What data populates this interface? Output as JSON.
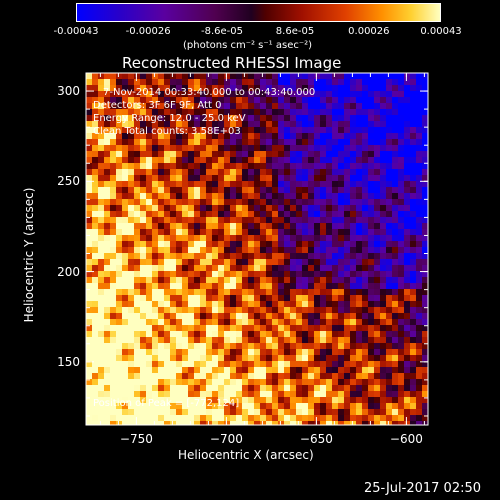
{
  "colorbar": {
    "tick_labels": [
      "-0.00043",
      "-0.00026",
      "-8.6e-05",
      "8.6e-05",
      "0.00026",
      "0.00043"
    ],
    "units_text": "(photons cm⁻² s⁻¹ asec⁻²)",
    "range": [
      -0.00043,
      0.00043
    ]
  },
  "chart_data": {
    "type": "heatmap",
    "title": "Reconstructed RHESSI Image",
    "xlabel": "Heliocentric X (arcsec)",
    "ylabel": "Heliocentric Y (arcsec)",
    "xlim": [
      -778,
      -588
    ],
    "ylim": [
      115,
      310
    ],
    "x_ticks": [
      -750,
      -700,
      -650,
      -600
    ],
    "y_ticks": [
      150,
      200,
      250,
      300
    ],
    "x_tick_labels": [
      "−750",
      "−700",
      "−650",
      "−600"
    ],
    "y_tick_labels": [
      "150",
      "200",
      "250",
      "300"
    ],
    "peak_position": [
      -772,
      124
    ],
    "info_lines": [
      "7-Nov-2014 00:33:40.000 to 00:43:40.000",
      "Detectors: 3F 6F 9F, Att 0",
      "Energy Range: 12.0 - 25.0 keV",
      "Clean     Total counts: 3.58E+03"
    ],
    "peak_label": "Position of Peak = [-772,124]"
  },
  "footer": {
    "timestamp": "25-Jul-2017 02:50"
  }
}
